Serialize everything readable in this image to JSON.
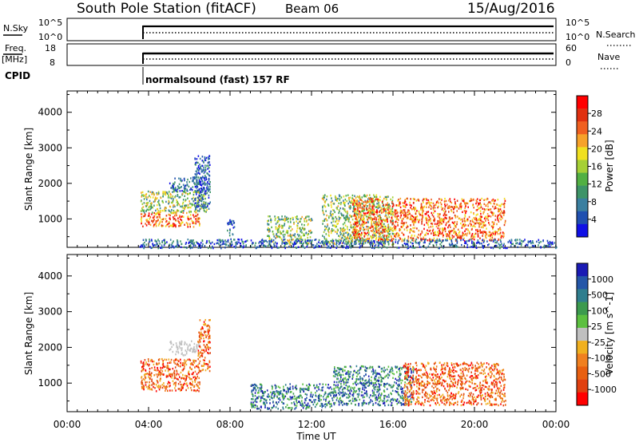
{
  "header": {
    "station": "South Pole Station (fitACF)",
    "beam": "Beam 06",
    "date": "15/Aug/2016"
  },
  "summary_panels": {
    "nsky_label": "N.Sky",
    "nsky_ticks": [
      "10^5",
      "10^0"
    ],
    "nsearch_label": "N.Search",
    "nsearch_ticks": [
      "10^5",
      "10^0"
    ],
    "freq_label": "Freq.",
    "freq_unit": "[MHz]",
    "freq_ticks": [
      "18",
      "8"
    ],
    "nave_label": "Nave",
    "nave_ticks": [
      "60",
      "0"
    ],
    "cpid_label": "CPID",
    "cpid_text": "normalsound (fast) 157 RF"
  },
  "chart_data": [
    {
      "type": "heatmap",
      "name": "power",
      "ylabel": "Slant Range [km]",
      "ylim": [
        200,
        4600
      ],
      "yticks": [
        1000,
        2000,
        3000,
        4000
      ],
      "xlim": [
        0,
        24
      ],
      "colorbar": {
        "label": "Power [dB]",
        "ticks": [
          4,
          8,
          12,
          16,
          20,
          24,
          28
        ],
        "colors": [
          "#1010e6",
          "#2050b0",
          "#3a7fa0",
          "#3e9468",
          "#52b043",
          "#a6d035",
          "#f0e020",
          "#f7a22a",
          "#f06020",
          "#e03010",
          "#ff0000"
        ]
      },
      "echo_regions": [
        {
          "t": [
            3.6,
            6.5
          ],
          "r": [
            800,
            1200
          ],
          "level": "high"
        },
        {
          "t": [
            3.6,
            6.9
          ],
          "r": [
            1200,
            1800
          ],
          "level": "medium"
        },
        {
          "t": [
            5.0,
            7.0
          ],
          "r": [
            1800,
            2200
          ],
          "level": "low"
        },
        {
          "t": [
            6.2,
            7.0
          ],
          "r": [
            1300,
            2800
          ],
          "level": "low"
        },
        {
          "t": [
            7.8,
            8.2
          ],
          "r": [
            400,
            1000
          ],
          "level": "low"
        },
        {
          "t": [
            9.8,
            12.0
          ],
          "r": [
            300,
            1100
          ],
          "level": "medium"
        },
        {
          "t": [
            12.5,
            16.0
          ],
          "r": [
            300,
            1700
          ],
          "level": "medium"
        },
        {
          "t": [
            14.0,
            21.5
          ],
          "r": [
            400,
            1600
          ],
          "level": "high"
        },
        {
          "t": [
            3.5,
            24.0
          ],
          "r": [
            200,
            450
          ],
          "level": "low"
        }
      ]
    },
    {
      "type": "heatmap",
      "name": "velocity",
      "ylabel": "Slant Range [km]",
      "xlabel": "Time UT",
      "ylim": [
        200,
        4600
      ],
      "yticks": [
        1000,
        2000,
        3000,
        4000
      ],
      "xlim": [
        0,
        24
      ],
      "xticks": [
        "00:00",
        "04:00",
        "08:00",
        "12:00",
        "16:00",
        "20:00",
        "00:00"
      ],
      "colorbar": {
        "label": "Velocity [m s^-1]",
        "ticks": [
          "1000",
          "500",
          "100",
          "25",
          "-25",
          "-100",
          "-500",
          "-1000"
        ],
        "colors": [
          "#1a1ab4",
          "#2456a8",
          "#2f7e8e",
          "#3c9a4e",
          "#5cc040",
          "#c0c0c0",
          "#f0b020",
          "#f08020",
          "#e86010",
          "#e04010",
          "#ff0000"
        ]
      },
      "echo_regions": [
        {
          "t": [
            3.6,
            6.5
          ],
          "r": [
            800,
            1700
          ],
          "level": "negative"
        },
        {
          "t": [
            5.0,
            6.5
          ],
          "r": [
            1800,
            2200
          ],
          "level": "gray"
        },
        {
          "t": [
            6.4,
            7.0
          ],
          "r": [
            1300,
            2800
          ],
          "level": "negative"
        },
        {
          "t": [
            9.0,
            13.0
          ],
          "r": [
            300,
            1000
          ],
          "level": "positive"
        },
        {
          "t": [
            13.0,
            17.0
          ],
          "r": [
            400,
            1500
          ],
          "level": "positive"
        },
        {
          "t": [
            16.5,
            21.5
          ],
          "r": [
            400,
            1600
          ],
          "level": "negative"
        }
      ]
    }
  ]
}
